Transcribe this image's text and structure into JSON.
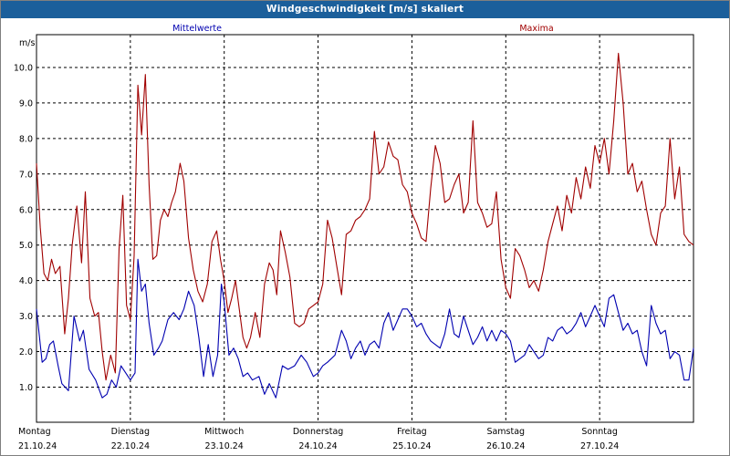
{
  "window": {
    "title": "Windgeschwindigkeit [m/s] skaliert"
  },
  "colors": {
    "titlebar": "#1b5f9b",
    "mean": "#0000b0",
    "max": "#a00000",
    "grid": "#000000"
  },
  "chart_data": {
    "type": "line",
    "title": "Windgeschwindigkeit [m/s] skaliert",
    "ylabel": "m/s",
    "ylim": [
      0.4,
      11.0
    ],
    "yticks": [
      1.0,
      2.0,
      3.0,
      4.0,
      5.0,
      6.0,
      7.0,
      8.0,
      9.0,
      10.0
    ],
    "ytick_labels": [
      "1.0",
      "2.0",
      "3.0",
      "4.0",
      "5.0",
      "6.0",
      "7.0",
      "8.0",
      "9.0",
      "10.0"
    ],
    "xlim": [
      0,
      7
    ],
    "days": [
      {
        "weekday": "Montag",
        "date": "21.10.24"
      },
      {
        "weekday": "Dienstag",
        "date": "22.10.24"
      },
      {
        "weekday": "Mittwoch",
        "date": "23.10.24"
      },
      {
        "weekday": "Donnerstag",
        "date": "24.10.24"
      },
      {
        "weekday": "Freitag",
        "date": "25.10.24"
      },
      {
        "weekday": "Samstag",
        "date": "26.10.24"
      },
      {
        "weekday": "Sonntag",
        "date": "27.10.24"
      }
    ],
    "grid": true,
    "series": [
      {
        "name": "Mittelwerte",
        "color": "#0000b0",
        "points": [
          [
            0.0,
            3.2
          ],
          [
            0.06,
            1.7
          ],
          [
            0.1,
            1.8
          ],
          [
            0.14,
            2.2
          ],
          [
            0.18,
            2.3
          ],
          [
            0.23,
            1.6
          ],
          [
            0.27,
            1.1
          ],
          [
            0.34,
            0.9
          ],
          [
            0.4,
            3.0
          ],
          [
            0.46,
            2.3
          ],
          [
            0.5,
            2.6
          ],
          [
            0.56,
            1.5
          ],
          [
            0.63,
            1.2
          ],
          [
            0.7,
            0.7
          ],
          [
            0.75,
            0.8
          ],
          [
            0.8,
            1.2
          ],
          [
            0.85,
            1.0
          ],
          [
            0.9,
            1.6
          ],
          [
            1.0,
            1.2
          ],
          [
            1.05,
            1.4
          ],
          [
            1.08,
            4.6
          ],
          [
            1.12,
            3.7
          ],
          [
            1.16,
            3.9
          ],
          [
            1.2,
            2.8
          ],
          [
            1.25,
            1.9
          ],
          [
            1.3,
            2.1
          ],
          [
            1.34,
            2.3
          ],
          [
            1.4,
            2.9
          ],
          [
            1.46,
            3.1
          ],
          [
            1.52,
            2.9
          ],
          [
            1.57,
            3.2
          ],
          [
            1.62,
            3.7
          ],
          [
            1.68,
            3.3
          ],
          [
            1.73,
            2.4
          ],
          [
            1.78,
            1.3
          ],
          [
            1.83,
            2.2
          ],
          [
            1.88,
            1.3
          ],
          [
            1.93,
            1.9
          ],
          [
            1.97,
            3.9
          ],
          [
            2.0,
            3.4
          ],
          [
            2.05,
            1.9
          ],
          [
            2.1,
            2.1
          ],
          [
            2.15,
            1.8
          ],
          [
            2.2,
            1.3
          ],
          [
            2.25,
            1.4
          ],
          [
            2.3,
            1.2
          ],
          [
            2.37,
            1.3
          ],
          [
            2.43,
            0.8
          ],
          [
            2.48,
            1.1
          ],
          [
            2.55,
            0.7
          ],
          [
            2.62,
            1.6
          ],
          [
            2.68,
            1.5
          ],
          [
            2.75,
            1.6
          ],
          [
            2.82,
            1.9
          ],
          [
            2.88,
            1.7
          ],
          [
            2.95,
            1.3
          ],
          [
            3.0,
            1.4
          ],
          [
            3.05,
            1.6
          ],
          [
            3.1,
            1.7
          ],
          [
            3.18,
            1.9
          ],
          [
            3.25,
            2.6
          ],
          [
            3.3,
            2.3
          ],
          [
            3.35,
            1.8
          ],
          [
            3.4,
            2.1
          ],
          [
            3.45,
            2.3
          ],
          [
            3.5,
            1.9
          ],
          [
            3.55,
            2.2
          ],
          [
            3.6,
            2.3
          ],
          [
            3.65,
            2.1
          ],
          [
            3.7,
            2.8
          ],
          [
            3.75,
            3.1
          ],
          [
            3.8,
            2.6
          ],
          [
            3.85,
            2.9
          ],
          [
            3.9,
            3.2
          ],
          [
            3.95,
            3.2
          ],
          [
            4.0,
            3.0
          ],
          [
            4.05,
            2.7
          ],
          [
            4.1,
            2.8
          ],
          [
            4.15,
            2.5
          ],
          [
            4.2,
            2.3
          ],
          [
            4.25,
            2.2
          ],
          [
            4.3,
            2.1
          ],
          [
            4.35,
            2.5
          ],
          [
            4.4,
            3.2
          ],
          [
            4.45,
            2.5
          ],
          [
            4.5,
            2.4
          ],
          [
            4.55,
            3.0
          ],
          [
            4.6,
            2.6
          ],
          [
            4.65,
            2.2
          ],
          [
            4.7,
            2.4
          ],
          [
            4.75,
            2.7
          ],
          [
            4.8,
            2.3
          ],
          [
            4.85,
            2.6
          ],
          [
            4.9,
            2.3
          ],
          [
            4.95,
            2.6
          ],
          [
            5.0,
            2.5
          ],
          [
            5.05,
            2.3
          ],
          [
            5.1,
            1.7
          ],
          [
            5.15,
            1.8
          ],
          [
            5.2,
            1.9
          ],
          [
            5.25,
            2.2
          ],
          [
            5.3,
            2.0
          ],
          [
            5.35,
            1.8
          ],
          [
            5.4,
            1.9
          ],
          [
            5.45,
            2.4
          ],
          [
            5.5,
            2.3
          ],
          [
            5.55,
            2.6
          ],
          [
            5.6,
            2.7
          ],
          [
            5.65,
            2.5
          ],
          [
            5.7,
            2.6
          ],
          [
            5.75,
            2.8
          ],
          [
            5.8,
            3.1
          ],
          [
            5.85,
            2.7
          ],
          [
            5.9,
            3.0
          ],
          [
            5.95,
            3.3
          ],
          [
            6.0,
            3.0
          ],
          [
            6.05,
            2.7
          ],
          [
            6.1,
            3.5
          ],
          [
            6.15,
            3.6
          ],
          [
            6.2,
            3.1
          ],
          [
            6.25,
            2.6
          ],
          [
            6.3,
            2.8
          ],
          [
            6.35,
            2.5
          ],
          [
            6.4,
            2.6
          ],
          [
            6.45,
            2.0
          ],
          [
            6.5,
            1.6
          ],
          [
            6.55,
            3.3
          ],
          [
            6.6,
            2.8
          ],
          [
            6.65,
            2.5
          ],
          [
            6.7,
            2.6
          ],
          [
            6.75,
            1.8
          ],
          [
            6.8,
            2.0
          ],
          [
            6.85,
            1.9
          ],
          [
            6.9,
            1.2
          ],
          [
            6.95,
            1.2
          ],
          [
            7.0,
            2.1
          ]
        ]
      },
      {
        "name": "Maxima",
        "color": "#a00000",
        "points": [
          [
            0.0,
            7.3
          ],
          [
            0.04,
            5.5
          ],
          [
            0.08,
            4.2
          ],
          [
            0.12,
            4.0
          ],
          [
            0.16,
            4.6
          ],
          [
            0.2,
            4.2
          ],
          [
            0.25,
            4.4
          ],
          [
            0.3,
            2.5
          ],
          [
            0.34,
            3.5
          ],
          [
            0.38,
            5.0
          ],
          [
            0.43,
            6.1
          ],
          [
            0.48,
            4.5
          ],
          [
            0.52,
            6.5
          ],
          [
            0.57,
            3.5
          ],
          [
            0.62,
            3.0
          ],
          [
            0.66,
            3.1
          ],
          [
            0.7,
            2.0
          ],
          [
            0.74,
            1.2
          ],
          [
            0.79,
            1.9
          ],
          [
            0.84,
            1.4
          ],
          [
            0.88,
            4.9
          ],
          [
            0.92,
            6.4
          ],
          [
            0.96,
            3.3
          ],
          [
            1.0,
            2.9
          ],
          [
            1.04,
            4.7
          ],
          [
            1.08,
            9.5
          ],
          [
            1.12,
            8.1
          ],
          [
            1.16,
            9.8
          ],
          [
            1.2,
            6.7
          ],
          [
            1.24,
            4.6
          ],
          [
            1.28,
            4.7
          ],
          [
            1.32,
            5.7
          ],
          [
            1.36,
            6.0
          ],
          [
            1.4,
            5.8
          ],
          [
            1.44,
            6.2
          ],
          [
            1.48,
            6.5
          ],
          [
            1.53,
            7.3
          ],
          [
            1.57,
            6.8
          ],
          [
            1.62,
            5.2
          ],
          [
            1.67,
            4.3
          ],
          [
            1.72,
            3.7
          ],
          [
            1.77,
            3.4
          ],
          [
            1.82,
            3.9
          ],
          [
            1.87,
            5.1
          ],
          [
            1.92,
            5.4
          ],
          [
            1.96,
            4.6
          ],
          [
            2.0,
            4.0
          ],
          [
            2.04,
            3.1
          ],
          [
            2.08,
            3.5
          ],
          [
            2.12,
            4.0
          ],
          [
            2.16,
            3.2
          ],
          [
            2.2,
            2.4
          ],
          [
            2.24,
            2.1
          ],
          [
            2.28,
            2.4
          ],
          [
            2.33,
            3.1
          ],
          [
            2.38,
            2.4
          ],
          [
            2.43,
            3.9
          ],
          [
            2.48,
            4.5
          ],
          [
            2.52,
            4.3
          ],
          [
            2.56,
            3.6
          ],
          [
            2.6,
            5.4
          ],
          [
            2.65,
            4.8
          ],
          [
            2.7,
            4.1
          ],
          [
            2.75,
            2.8
          ],
          [
            2.8,
            2.7
          ],
          [
            2.85,
            2.8
          ],
          [
            2.9,
            3.2
          ],
          [
            2.95,
            3.3
          ],
          [
            3.0,
            3.4
          ],
          [
            3.05,
            3.9
          ],
          [
            3.1,
            5.7
          ],
          [
            3.15,
            5.2
          ],
          [
            3.2,
            4.4
          ],
          [
            3.25,
            3.6
          ],
          [
            3.3,
            5.3
          ],
          [
            3.35,
            5.4
          ],
          [
            3.4,
            5.7
          ],
          [
            3.45,
            5.8
          ],
          [
            3.5,
            6.0
          ],
          [
            3.55,
            6.3
          ],
          [
            3.6,
            8.2
          ],
          [
            3.65,
            7.0
          ],
          [
            3.7,
            7.2
          ],
          [
            3.75,
            7.9
          ],
          [
            3.8,
            7.5
          ],
          [
            3.85,
            7.4
          ],
          [
            3.9,
            6.7
          ],
          [
            3.95,
            6.5
          ],
          [
            4.0,
            5.9
          ],
          [
            4.05,
            5.6
          ],
          [
            4.1,
            5.2
          ],
          [
            4.15,
            5.1
          ],
          [
            4.2,
            6.6
          ],
          [
            4.25,
            7.8
          ],
          [
            4.3,
            7.3
          ],
          [
            4.35,
            6.2
          ],
          [
            4.4,
            6.3
          ],
          [
            4.45,
            6.7
          ],
          [
            4.5,
            7.0
          ],
          [
            4.55,
            5.9
          ],
          [
            4.6,
            6.2
          ],
          [
            4.65,
            8.5
          ],
          [
            4.7,
            6.2
          ],
          [
            4.75,
            5.9
          ],
          [
            4.8,
            5.5
          ],
          [
            4.85,
            5.6
          ],
          [
            4.9,
            6.5
          ],
          [
            4.95,
            4.6
          ],
          [
            5.0,
            3.8
          ],
          [
            5.05,
            3.5
          ],
          [
            5.1,
            4.9
          ],
          [
            5.15,
            4.7
          ],
          [
            5.2,
            4.3
          ],
          [
            5.25,
            3.8
          ],
          [
            5.3,
            4.0
          ],
          [
            5.35,
            3.7
          ],
          [
            5.4,
            4.3
          ],
          [
            5.45,
            5.1
          ],
          [
            5.5,
            5.6
          ],
          [
            5.55,
            6.1
          ],
          [
            5.6,
            5.4
          ],
          [
            5.65,
            6.4
          ],
          [
            5.7,
            5.9
          ],
          [
            5.75,
            6.9
          ],
          [
            5.8,
            6.3
          ],
          [
            5.85,
            7.2
          ],
          [
            5.9,
            6.6
          ],
          [
            5.95,
            7.8
          ],
          [
            6.0,
            7.3
          ],
          [
            6.05,
            8.0
          ],
          [
            6.1,
            7.0
          ],
          [
            6.15,
            8.5
          ],
          [
            6.2,
            10.4
          ],
          [
            6.25,
            9.0
          ],
          [
            6.3,
            7.0
          ],
          [
            6.35,
            7.3
          ],
          [
            6.4,
            6.5
          ],
          [
            6.45,
            6.8
          ],
          [
            6.5,
            6.0
          ],
          [
            6.55,
            5.3
          ],
          [
            6.6,
            5.0
          ],
          [
            6.65,
            5.9
          ],
          [
            6.7,
            6.1
          ],
          [
            6.75,
            8.0
          ],
          [
            6.8,
            6.3
          ],
          [
            6.85,
            7.2
          ],
          [
            6.9,
            5.3
          ],
          [
            6.95,
            5.1
          ],
          [
            7.0,
            5.0
          ]
        ]
      }
    ]
  }
}
